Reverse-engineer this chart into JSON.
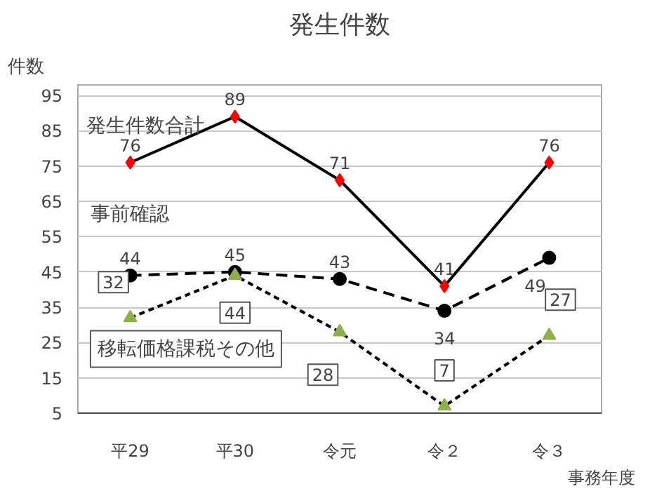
{
  "chart_data": {
    "type": "line",
    "title": "発生件数",
    "ylabel": "件数",
    "xlabel": "事務年度",
    "categories": [
      "平29",
      "平30",
      "令元",
      "令２",
      "令３"
    ],
    "ylim": [
      5,
      98
    ],
    "yticks": [
      5,
      15,
      25,
      35,
      45,
      55,
      65,
      75,
      85,
      95
    ],
    "grid": "y",
    "data_labels": true,
    "series": [
      {
        "name": "発生件数合計",
        "color": "#000000",
        "colors": [
          "#ff0000",
          "#ff0000",
          "#ff0000",
          "#ff0000",
          "#ff0000"
        ],
        "marker": "diamond",
        "line_style": "solid",
        "values": [
          76,
          89,
          71,
          41,
          76
        ]
      },
      {
        "name": "事前確認",
        "color": "#000000",
        "colors": [
          "#000000",
          "#000000",
          "#000000",
          "#000000",
          "#000000"
        ],
        "marker": "circle",
        "line_style": "dashed",
        "values": [
          44,
          45,
          43,
          34,
          49
        ]
      },
      {
        "name": "移転価格課税その他",
        "color": "#000000",
        "colors": [
          "#8db04a",
          "#8db04a",
          "#8db04a",
          "#8db04a",
          "#8db04a"
        ],
        "marker": "triangle",
        "line_style": "dotted",
        "values": [
          32,
          44,
          28,
          7,
          27
        ]
      }
    ]
  }
}
